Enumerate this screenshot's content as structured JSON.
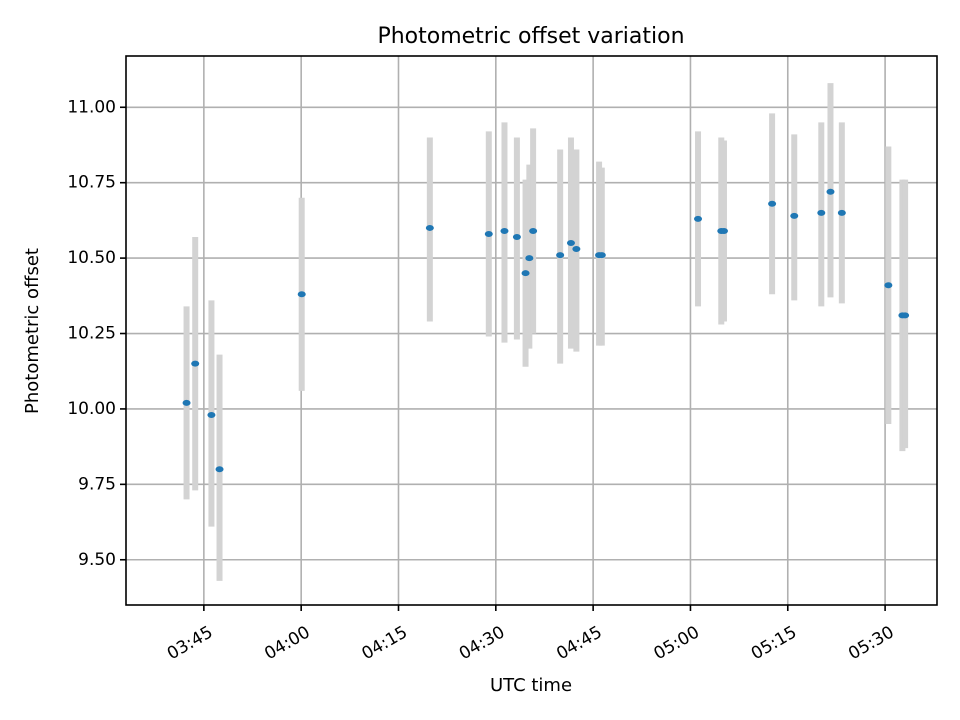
{
  "chart_data": {
    "type": "scatter",
    "title": "Photometric offset variation",
    "xlabel": "UTC time",
    "ylabel": "Photometric offset",
    "xlim": [
      "03:33",
      "05:38"
    ],
    "ylim": [
      9.35,
      11.17
    ],
    "x_ticks": [
      "03:45",
      "04:00",
      "04:15",
      "04:30",
      "04:45",
      "05:00",
      "05:15",
      "05:30"
    ],
    "y_ticks": [
      "9.50",
      "9.75",
      "10.00",
      "10.25",
      "10.50",
      "10.75",
      "11.00"
    ],
    "y_tick_values": [
      9.5,
      9.75,
      10.0,
      10.25,
      10.5,
      10.75,
      11.0
    ],
    "grid": true,
    "point_color": "#1f77b4",
    "errorbar_color": "#d3d3d3",
    "series": [
      {
        "points": [
          {
            "x": "03:42:20",
            "y": 10.02,
            "ylo": 9.7,
            "yhi": 10.34
          },
          {
            "x": "03:43:40",
            "y": 10.15,
            "ylo": 9.73,
            "yhi": 10.57
          },
          {
            "x": "03:46:10",
            "y": 9.98,
            "ylo": 9.61,
            "yhi": 10.36
          },
          {
            "x": "03:47:25",
            "y": 9.8,
            "ylo": 9.43,
            "yhi": 10.18
          },
          {
            "x": "04:00:05",
            "y": 10.38,
            "ylo": 10.06,
            "yhi": 10.7
          },
          {
            "x": "04:19:50",
            "y": 10.6,
            "ylo": 10.29,
            "yhi": 10.9
          },
          {
            "x": "04:28:55",
            "y": 10.58,
            "ylo": 10.24,
            "yhi": 10.92
          },
          {
            "x": "04:31:20",
            "y": 10.59,
            "ylo": 10.22,
            "yhi": 10.95
          },
          {
            "x": "04:33:15",
            "y": 10.57,
            "ylo": 10.23,
            "yhi": 10.9
          },
          {
            "x": "04:34:35",
            "y": 10.45,
            "ylo": 10.14,
            "yhi": 10.76
          },
          {
            "x": "04:35:10",
            "y": 10.5,
            "ylo": 10.2,
            "yhi": 10.81
          },
          {
            "x": "04:35:45",
            "y": 10.59,
            "ylo": 10.25,
            "yhi": 10.93
          },
          {
            "x": "04:39:55",
            "y": 10.51,
            "ylo": 10.15,
            "yhi": 10.86
          },
          {
            "x": "04:41:35",
            "y": 10.55,
            "ylo": 10.2,
            "yhi": 10.9
          },
          {
            "x": "04:42:25",
            "y": 10.53,
            "ylo": 10.19,
            "yhi": 10.86
          },
          {
            "x": "04:45:55",
            "y": 10.51,
            "ylo": 10.21,
            "yhi": 10.82
          },
          {
            "x": "04:46:20",
            "y": 10.51,
            "ylo": 10.21,
            "yhi": 10.8
          },
          {
            "x": "05:01:10",
            "y": 10.63,
            "ylo": 10.34,
            "yhi": 10.92
          },
          {
            "x": "05:04:45",
            "y": 10.59,
            "ylo": 10.28,
            "yhi": 10.9
          },
          {
            "x": "05:05:10",
            "y": 10.59,
            "ylo": 10.29,
            "yhi": 10.89
          },
          {
            "x": "05:12:35",
            "y": 10.68,
            "ylo": 10.38,
            "yhi": 10.98
          },
          {
            "x": "05:16:00",
            "y": 10.64,
            "ylo": 10.36,
            "yhi": 10.91
          },
          {
            "x": "05:20:10",
            "y": 10.65,
            "ylo": 10.34,
            "yhi": 10.95
          },
          {
            "x": "05:21:35",
            "y": 10.72,
            "ylo": 10.37,
            "yhi": 11.08
          },
          {
            "x": "05:23:20",
            "y": 10.65,
            "ylo": 10.35,
            "yhi": 10.95
          },
          {
            "x": "05:30:30",
            "y": 10.41,
            "ylo": 9.95,
            "yhi": 10.87
          },
          {
            "x": "05:32:40",
            "y": 10.31,
            "ylo": 9.86,
            "yhi": 10.76
          },
          {
            "x": "05:33:05",
            "y": 10.31,
            "ylo": 9.87,
            "yhi": 10.76
          }
        ]
      }
    ]
  }
}
